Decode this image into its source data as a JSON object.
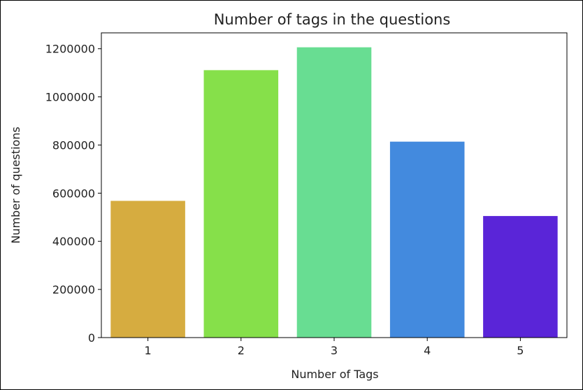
{
  "chart_data": {
    "type": "bar",
    "title": "Number of tags in the questions",
    "xlabel": "Number of Tags",
    "ylabel": "Number of questions",
    "categories": [
      "1",
      "2",
      "3",
      "4",
      "5"
    ],
    "values": [
      568000,
      1111000,
      1206000,
      814000,
      505000
    ],
    "colors": [
      "#d6ac40",
      "#86e04a",
      "#68dd92",
      "#438ade",
      "#5a25d8"
    ],
    "yticks": [
      0,
      200000,
      400000,
      600000,
      800000,
      1000000,
      1200000
    ],
    "ytick_labels": [
      "0",
      "200000",
      "400000",
      "600000",
      "800000",
      "1000000",
      "1200000"
    ],
    "ylim": [
      0,
      1266000
    ],
    "grid": false,
    "legend": "none"
  }
}
